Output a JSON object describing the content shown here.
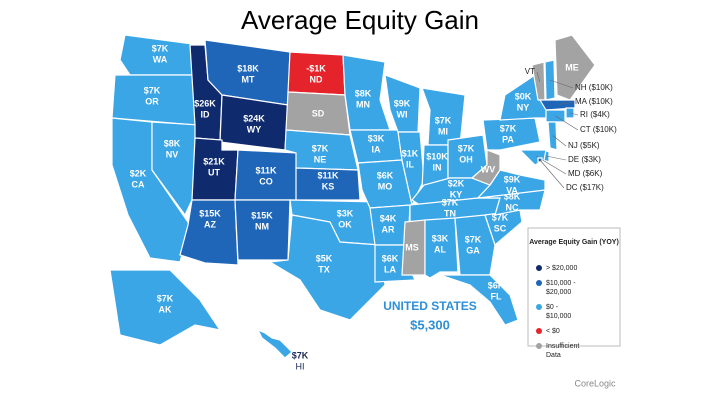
{
  "title": "Average Equity Gain",
  "legend": {
    "title": "Average Equity Gain (YOY)",
    "items": [
      {
        "label": "> $20,000",
        "color": "#0f2b6e"
      },
      {
        "label": "$10,000 - $20,000",
        "color": "#1f66b8"
      },
      {
        "label": "$0 - $10,000",
        "color": "#3aa6e6"
      },
      {
        "label": "< $0",
        "color": "#e5232b"
      },
      {
        "label": "Insufficient Data",
        "color": "#a3a3a3"
      }
    ]
  },
  "states": [
    {
      "abbr": "WA",
      "value": "$7K",
      "group": 2
    },
    {
      "abbr": "OR",
      "value": "$7K",
      "group": 2
    },
    {
      "abbr": "CA",
      "value": "$2K",
      "group": 2
    },
    {
      "abbr": "NV",
      "value": "$8K",
      "group": 2
    },
    {
      "abbr": "ID",
      "value": "$26K",
      "group": 0
    },
    {
      "abbr": "MT",
      "value": "$18K",
      "group": 1
    },
    {
      "abbr": "WY",
      "value": "$24K",
      "group": 0
    },
    {
      "abbr": "UT",
      "value": "$21K",
      "group": 0
    },
    {
      "abbr": "CO",
      "value": "$11K",
      "group": 1
    },
    {
      "abbr": "AZ",
      "value": "$15K",
      "group": 1
    },
    {
      "abbr": "NM",
      "value": "$15K",
      "group": 1
    },
    {
      "abbr": "ND",
      "value": "-$1K",
      "group": 3
    },
    {
      "abbr": "SD",
      "group": 4
    },
    {
      "abbr": "NE",
      "value": "$7K",
      "group": 2
    },
    {
      "abbr": "KS",
      "value": "$11K",
      "group": 1
    },
    {
      "abbr": "OK",
      "value": "$3K",
      "group": 2
    },
    {
      "abbr": "TX",
      "value": "$5K",
      "group": 2
    },
    {
      "abbr": "MN",
      "value": "$8K",
      "group": 2
    },
    {
      "abbr": "IA",
      "value": "$3K",
      "group": 2
    },
    {
      "abbr": "MO",
      "value": "$6K",
      "group": 2
    },
    {
      "abbr": "AR",
      "value": "$4K",
      "group": 2
    },
    {
      "abbr": "LA",
      "value": "$6K",
      "group": 2
    },
    {
      "abbr": "WI",
      "value": "$9K",
      "group": 2
    },
    {
      "abbr": "IL",
      "value": "$1K",
      "group": 2
    },
    {
      "abbr": "MI",
      "value": "$7K",
      "group": 2
    },
    {
      "abbr": "IN",
      "value": "$10K",
      "group": 2
    },
    {
      "abbr": "OH",
      "value": "$7K",
      "group": 2
    },
    {
      "abbr": "KY",
      "value": "$2K",
      "group": 2
    },
    {
      "abbr": "TN",
      "value": "$7K",
      "group": 2
    },
    {
      "abbr": "MS",
      "group": 4
    },
    {
      "abbr": "AL",
      "value": "$3K",
      "group": 2
    },
    {
      "abbr": "GA",
      "value": "$7K",
      "group": 2
    },
    {
      "abbr": "FL",
      "value": "$6K",
      "group": 2
    },
    {
      "abbr": "SC",
      "value": "$7K",
      "group": 2
    },
    {
      "abbr": "NC",
      "value": "$8K",
      "group": 2
    },
    {
      "abbr": "VA",
      "value": "$9K",
      "group": 2
    },
    {
      "abbr": "WV",
      "group": 4
    },
    {
      "abbr": "PA",
      "value": "$7K",
      "group": 2
    },
    {
      "abbr": "NY",
      "value": "$0K",
      "group": 2
    },
    {
      "abbr": "VT",
      "group": 4
    },
    {
      "abbr": "ME",
      "group": 4
    },
    {
      "abbr": "AK",
      "value": "$7K",
      "group": 2
    },
    {
      "abbr": "HI",
      "value": "$7K",
      "group": 2
    },
    {
      "label": "NH ($10K)",
      "group": 2
    },
    {
      "label": "MA ($10K)",
      "group": 1
    },
    {
      "label": "RI ($4K)",
      "group": 2
    },
    {
      "label": "CT ($10K)",
      "group": 2
    },
    {
      "label": "NJ ($5K)",
      "group": 2
    },
    {
      "label": "DE ($3K)",
      "group": 2
    },
    {
      "label": "MD ($6K)",
      "group": 2
    },
    {
      "label": "DC ($17K)",
      "group": 1
    }
  ],
  "summary": {
    "name": "UNITED STATES",
    "value": "$5,300"
  },
  "source": "CoreLogic"
}
